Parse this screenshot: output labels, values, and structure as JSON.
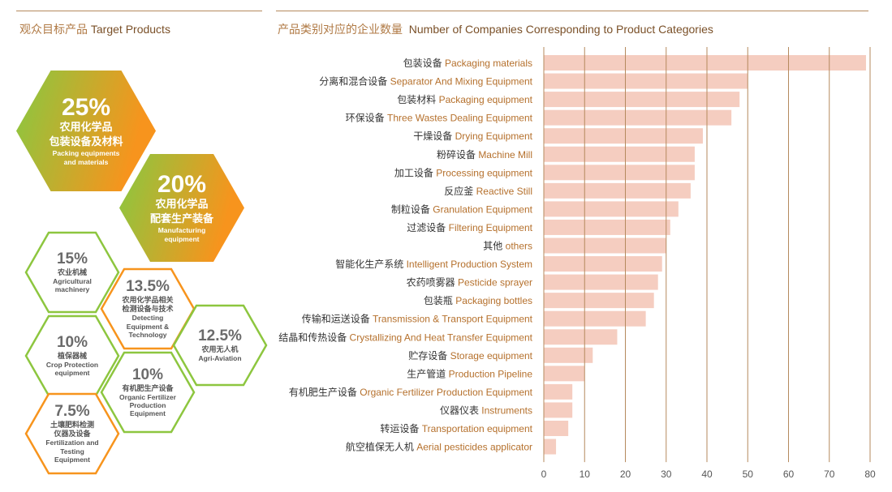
{
  "left_panel": {
    "title_cn": "观众目标产品",
    "title_en": "Target Products",
    "hexagons": [
      {
        "pct": "25%",
        "cn": [
          "农用化学品",
          "包装设备及材料"
        ],
        "en": [
          "Packing equipments",
          "and materials"
        ]
      },
      {
        "pct": "20%",
        "cn": [
          "农用化学品",
          "配套生产装备"
        ],
        "en": [
          "Manufacturing",
          "equipment"
        ]
      },
      {
        "pct": "15%",
        "cn": [
          "农业机械"
        ],
        "en": [
          "Agricultural",
          "machinery"
        ]
      },
      {
        "pct": "13.5%",
        "cn": [
          "农用化学品相关",
          "检测设备与技术"
        ],
        "en": [
          "Detecting",
          "Equipment &",
          "Technology"
        ]
      },
      {
        "pct": "12.5%",
        "cn": [
          "农用无人机"
        ],
        "en": [
          "Agri-Aviation"
        ]
      },
      {
        "pct": "10%",
        "cn": [
          "植保器械"
        ],
        "en": [
          "Crop Protection",
          "equipment"
        ]
      },
      {
        "pct": "10%",
        "cn": [
          "有机肥生产设备"
        ],
        "en": [
          "Organic Fertilizer",
          "Production",
          "Equipment"
        ]
      },
      {
        "pct": "7.5%",
        "cn": [
          "土壤肥料检测",
          "仪器及设备"
        ],
        "en": [
          "Fertilization and",
          "Testing",
          "Equipment"
        ]
      }
    ]
  },
  "right_panel": {
    "title_cn": "产品类别对应的企业数量",
    "title_en": "Number of Companies Corresponding to Product Categories"
  },
  "colors": {
    "bar": "#f5cdc0",
    "axis_line": "#b58a5e",
    "label_cn": "#333333",
    "label_en": "#b5702c",
    "hex_gradient": [
      "#8dc63f",
      "#f7941d"
    ],
    "hex_outline_green": "#8dc63f",
    "hex_outline_orange": "#f7941d"
  },
  "chart_data": {
    "type": "bar",
    "orientation": "horizontal",
    "title": "Number of Companies Corresponding to Product Categories",
    "categories_cn": [
      "包装设备",
      "分离和混合设备",
      "包装材料",
      "环保设备",
      "干燥设备",
      "粉碎设备",
      "加工设备",
      "反应釜",
      "制粒设备",
      "过滤设备",
      "其他",
      "智能化生产系统",
      "农药喷雾器",
      "包装瓶",
      "传输和运送设备",
      "结晶和传热设备",
      "贮存设备",
      "生产管道",
      "有机肥生产设备",
      "仪器仪表",
      "转运设备",
      "航空植保无人机"
    ],
    "categories_en": [
      "Packaging materials",
      "Separator And Mixing Equipment",
      "Packaging equipment",
      "Three Wastes Dealing Equipment",
      "Drying Equipment",
      "Machine Mill",
      "Processing equipment",
      "Reactive Still",
      "Granulation Equipment",
      "Filtering Equipment",
      "others",
      "Intelligent Production System",
      "Pesticide sprayer",
      "Packaging bottles",
      "Transmission & Transport Equipment",
      "Crystallizing And Heat Transfer Equipment",
      "Storage equipment",
      "Production Pipeline",
      "Organic Fertilizer Production Equipment",
      "Instruments",
      "Transportation equipment",
      "Aerial pesticides applicator"
    ],
    "values": [
      79,
      50,
      48,
      46,
      39,
      37,
      37,
      36,
      33,
      31,
      30,
      29,
      28,
      27,
      25,
      18,
      12,
      10,
      7,
      7,
      6,
      3
    ],
    "xlim": [
      0,
      80
    ],
    "xticks": [
      0,
      10,
      20,
      30,
      40,
      50,
      60,
      70,
      80
    ],
    "grid": "vertical"
  }
}
